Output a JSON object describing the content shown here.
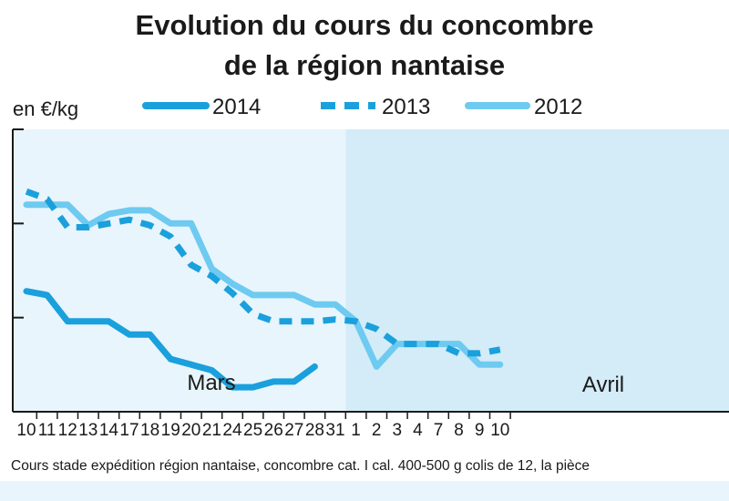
{
  "chart_data": {
    "type": "line",
    "title_line1": "Evolution du cours du concombre",
    "title_line2": "de la région nantaise",
    "ylabel": "en €/kg",
    "ylim": [
      0,
      1.5
    ],
    "yticks": [
      0.5,
      1.0
    ],
    "grid": false,
    "legend_position": "top",
    "categories": [
      "10",
      "11",
      "12",
      "13",
      "14",
      "17",
      "18",
      "19",
      "20",
      "21",
      "24",
      "25",
      "26",
      "27",
      "28",
      "31",
      "1",
      "2",
      "3",
      "4",
      "7",
      "8",
      "9",
      "10"
    ],
    "months": [
      {
        "label": "Mars",
        "start_index": 0,
        "end_index": 15
      },
      {
        "label": "Avril",
        "start_index": 16,
        "end_index": 23
      }
    ],
    "series": [
      {
        "name": "2014",
        "color": "#1aa0dc",
        "style": "solid",
        "values": [
          0.64,
          0.62,
          0.48,
          0.48,
          0.48,
          0.41,
          0.41,
          0.28,
          0.25,
          0.22,
          0.13,
          0.13,
          0.16,
          0.16,
          0.24,
          null,
          null,
          null,
          null,
          null,
          null,
          null,
          null,
          null
        ]
      },
      {
        "name": "2013",
        "color": "#1aa0dc",
        "style": "dashed",
        "values": [
          1.17,
          1.13,
          0.98,
          0.98,
          1.0,
          1.02,
          0.99,
          0.93,
          0.78,
          0.72,
          0.63,
          0.52,
          0.48,
          0.48,
          0.48,
          0.49,
          0.48,
          0.44,
          0.36,
          0.36,
          0.36,
          0.31,
          0.31,
          0.33
        ]
      },
      {
        "name": "2012",
        "color": "#6ecaf0",
        "style": "solid",
        "values": [
          1.1,
          1.1,
          1.1,
          0.99,
          1.05,
          1.07,
          1.07,
          1.0,
          1.0,
          0.76,
          0.68,
          0.62,
          0.62,
          0.62,
          0.57,
          0.57,
          0.48,
          0.24,
          0.36,
          0.36,
          0.36,
          0.36,
          0.25,
          0.25
        ]
      }
    ],
    "source": "Cours stade expédition région nantaise, concombre cat. I cal. 400-500 g colis de 12, la pièce"
  },
  "colors": {
    "panel_march": "#e8f5fc",
    "panel_april": "#d3ecf8",
    "axis": "#1a1a1a",
    "footer_band": "#e8f5fc"
  }
}
